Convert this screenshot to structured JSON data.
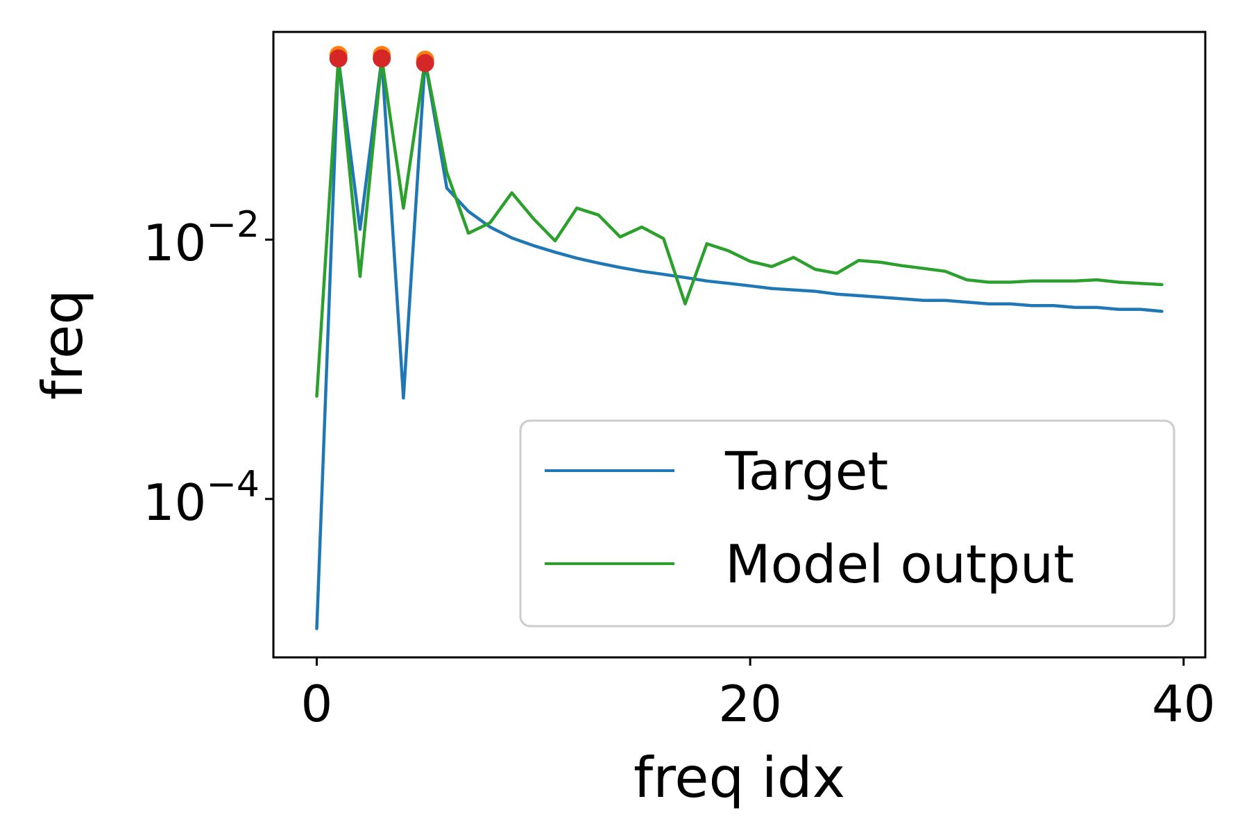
{
  "chart_data": {
    "type": "line",
    "xlabel": "freq idx",
    "ylabel": "freq",
    "xlim": [
      -2,
      41
    ],
    "ylim": [
      6e-06,
      0.4
    ],
    "yscale": "log",
    "x_ticks": [
      0,
      20,
      40
    ],
    "x_tick_labels": [
      "0",
      "20",
      "40"
    ],
    "y_ticks": [
      0.01,
      0.0001
    ],
    "y_tick_labels": [
      {
        "base": "10",
        "exp": "−2"
      },
      {
        "base": "10",
        "exp": "−4"
      }
    ],
    "legend_position": "lower-right",
    "colors": {
      "target": "#1f77b4",
      "model": "#2ca02c",
      "marker": "#d62728",
      "marker_behind": "#ff7f0e",
      "frame": "#000000",
      "legend_border": "#cccccc"
    },
    "series": [
      {
        "name": "Target",
        "color": "#1f77b4",
        "x": [
          0,
          1,
          2,
          3,
          4,
          5,
          6,
          7,
          8,
          9,
          10,
          11,
          12,
          13,
          14,
          15,
          16,
          17,
          18,
          19,
          20,
          21,
          22,
          23,
          24,
          25,
          26,
          27,
          28,
          29,
          30,
          31,
          32,
          33,
          34,
          35,
          36,
          37,
          38,
          39
        ],
        "y": [
          1e-05,
          0.25,
          0.012,
          0.25,
          0.0006,
          0.24,
          0.025,
          0.0165,
          0.0125,
          0.0103,
          0.009,
          0.008,
          0.0072,
          0.0066,
          0.0061,
          0.0057,
          0.0054,
          0.0051,
          0.0048,
          0.0046,
          0.0044,
          0.0042,
          0.0041,
          0.004,
          0.0038,
          0.0037,
          0.0036,
          0.0035,
          0.0034,
          0.0034,
          0.0033,
          0.0032,
          0.0032,
          0.0031,
          0.0031,
          0.003,
          0.003,
          0.0029,
          0.0029,
          0.0028
        ]
      },
      {
        "name": "Model output",
        "color": "#2ca02c",
        "x": [
          0,
          1,
          2,
          3,
          4,
          5,
          6,
          7,
          8,
          9,
          10,
          11,
          12,
          13,
          14,
          15,
          16,
          17,
          18,
          19,
          20,
          21,
          22,
          23,
          24,
          25,
          26,
          27,
          28,
          29,
          30,
          31,
          32,
          33,
          34,
          35,
          36,
          37,
          38,
          39
        ],
        "y": [
          0.00062,
          0.25,
          0.0052,
          0.25,
          0.0175,
          0.24,
          0.033,
          0.0112,
          0.0135,
          0.023,
          0.0145,
          0.0098,
          0.0175,
          0.0155,
          0.0105,
          0.0125,
          0.0102,
          0.0032,
          0.0093,
          0.0082,
          0.0068,
          0.0062,
          0.0073,
          0.0059,
          0.0055,
          0.0069,
          0.0067,
          0.0063,
          0.006,
          0.0057,
          0.0049,
          0.0047,
          0.0047,
          0.0048,
          0.0048,
          0.0048,
          0.0049,
          0.0047,
          0.0046,
          0.0045
        ]
      }
    ],
    "markers": {
      "x": [
        1,
        3,
        5
      ],
      "y": [
        0.25,
        0.25,
        0.23
      ]
    }
  }
}
